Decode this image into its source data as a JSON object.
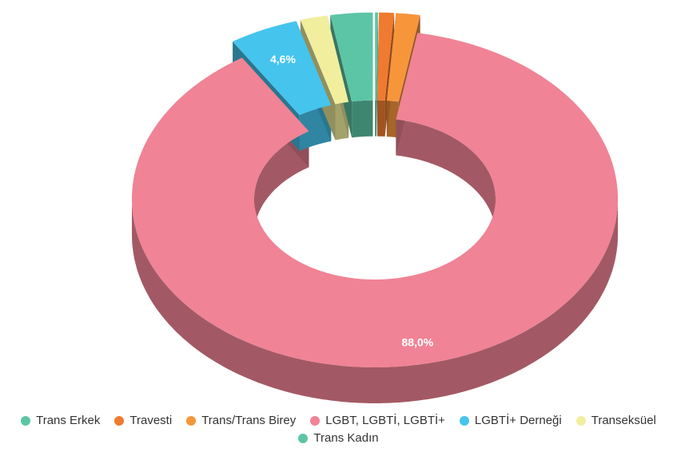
{
  "chart_data": {
    "type": "pie3d_donut",
    "categories": [
      "Trans Erkek",
      "Travesti",
      "Trans/Trans Birey",
      "LGBT, LGBTİ, LGBTİ+",
      "LGBTİ+ Derneği",
      "Transeksüel",
      "Trans Kadın"
    ],
    "values": [
      0.2,
      1.0,
      1.6,
      88.0,
      4.6,
      1.8,
      2.8
    ],
    "value_labels": [
      null,
      null,
      null,
      "88,0%",
      "4,6%",
      null,
      null
    ],
    "colors": [
      "#5cc5a5",
      "#ef7a30",
      "#f7953b",
      "#f08395",
      "#45c4ee",
      "#f1ee9d",
      "#5cc5a5"
    ],
    "legend": "bottom"
  }
}
